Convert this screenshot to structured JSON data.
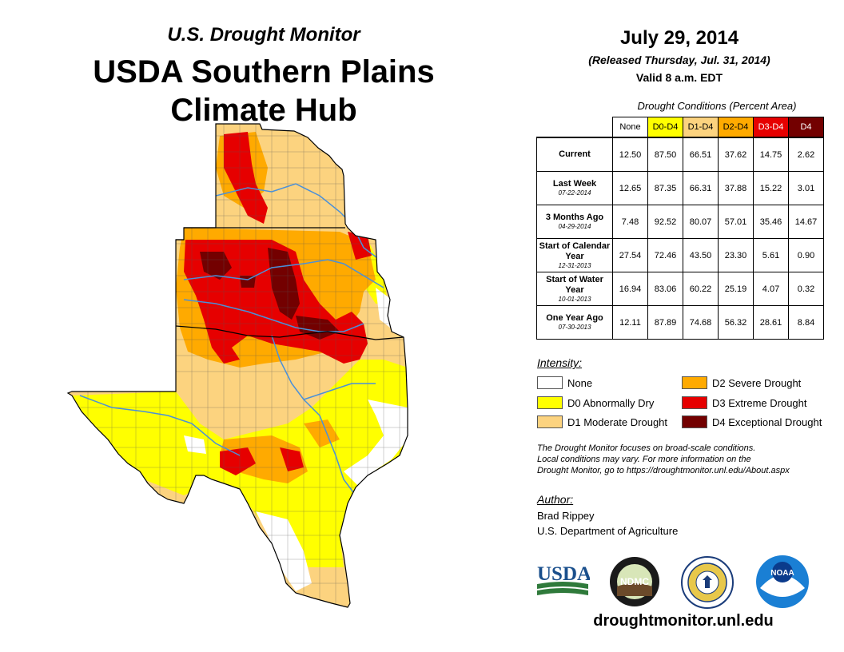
{
  "header": {
    "subtitle": "U.S. Drought Monitor",
    "title_line1": "USDA Southern Plains",
    "title_line2": "Climate Hub"
  },
  "report": {
    "date": "July 29, 2014",
    "released": "(Released Thursday, Jul. 31, 2014)",
    "valid": "Valid 8 a.m. EDT"
  },
  "table": {
    "caption": "Drought Conditions (Percent Area)",
    "columns": [
      {
        "label": "None",
        "color": "#ffffff",
        "text_color": "#000000"
      },
      {
        "label": "D0-D4",
        "color": "#ffff00",
        "text_color": "#000000"
      },
      {
        "label": "D1-D4",
        "color": "#fcd37f",
        "text_color": "#000000"
      },
      {
        "label": "D2-D4",
        "color": "#ffaa00",
        "text_color": "#000000"
      },
      {
        "label": "D3-D4",
        "color": "#e60000",
        "text_color": "#ffffff"
      },
      {
        "label": "D4",
        "color": "#730000",
        "text_color": "#ffffff"
      }
    ],
    "rows": [
      {
        "label": "Current",
        "date": "",
        "values": [
          "12.50",
          "87.50",
          "66.51",
          "37.62",
          "14.75",
          "2.62"
        ]
      },
      {
        "label": "Last Week",
        "date": "07-22-2014",
        "values": [
          "12.65",
          "87.35",
          "66.31",
          "37.88",
          "15.22",
          "3.01"
        ]
      },
      {
        "label": "3 Months Ago",
        "date": "04-29-2014",
        "values": [
          "7.48",
          "92.52",
          "80.07",
          "57.01",
          "35.46",
          "14.67"
        ]
      },
      {
        "label": "Start of Calendar Year",
        "date": "12-31-2013",
        "values": [
          "27.54",
          "72.46",
          "43.50",
          "23.30",
          "5.61",
          "0.90"
        ]
      },
      {
        "label": "Start of Water Year",
        "date": "10-01-2013",
        "values": [
          "16.94",
          "83.06",
          "60.22",
          "25.19",
          "4.07",
          "0.32"
        ]
      },
      {
        "label": "One Year Ago",
        "date": "07-30-2013",
        "values": [
          "12.11",
          "87.89",
          "74.68",
          "56.32",
          "28.61",
          "8.84"
        ]
      }
    ]
  },
  "legend": {
    "heading": "Intensity:",
    "items": [
      {
        "label": "None",
        "color": "#ffffff"
      },
      {
        "label": "D0 Abnormally Dry",
        "color": "#ffff00"
      },
      {
        "label": "D1 Moderate Drought",
        "color": "#fcd37f"
      },
      {
        "label": "D2 Severe Drought",
        "color": "#ffaa00"
      },
      {
        "label": "D3 Extreme Drought",
        "color": "#e60000"
      },
      {
        "label": "D4 Exceptional Drought",
        "color": "#730000"
      }
    ]
  },
  "note": {
    "line1": "The Drought Monitor focuses on broad-scale conditions.",
    "line2": "Local conditions may vary. For more information on the",
    "line3": "Drought Monitor, go to https://droughtmonitor.unl.edu/About.aspx"
  },
  "author": {
    "heading": "Author:",
    "name": "Brad Rippey",
    "org": "U.S. Department of Agriculture"
  },
  "logos": {
    "usda": "USDA",
    "ndmc": "NDMC",
    "noaa": "NOAA"
  },
  "footer": {
    "url": "droughtmonitor.unl.edu"
  },
  "map": {
    "colors": {
      "none": "#ffffff",
      "d0": "#ffff00",
      "d1": "#fcd37f",
      "d2": "#ffaa00",
      "d3": "#e60000",
      "d4": "#730000",
      "river": "#4a90d9",
      "county_line": "#555555"
    }
  }
}
